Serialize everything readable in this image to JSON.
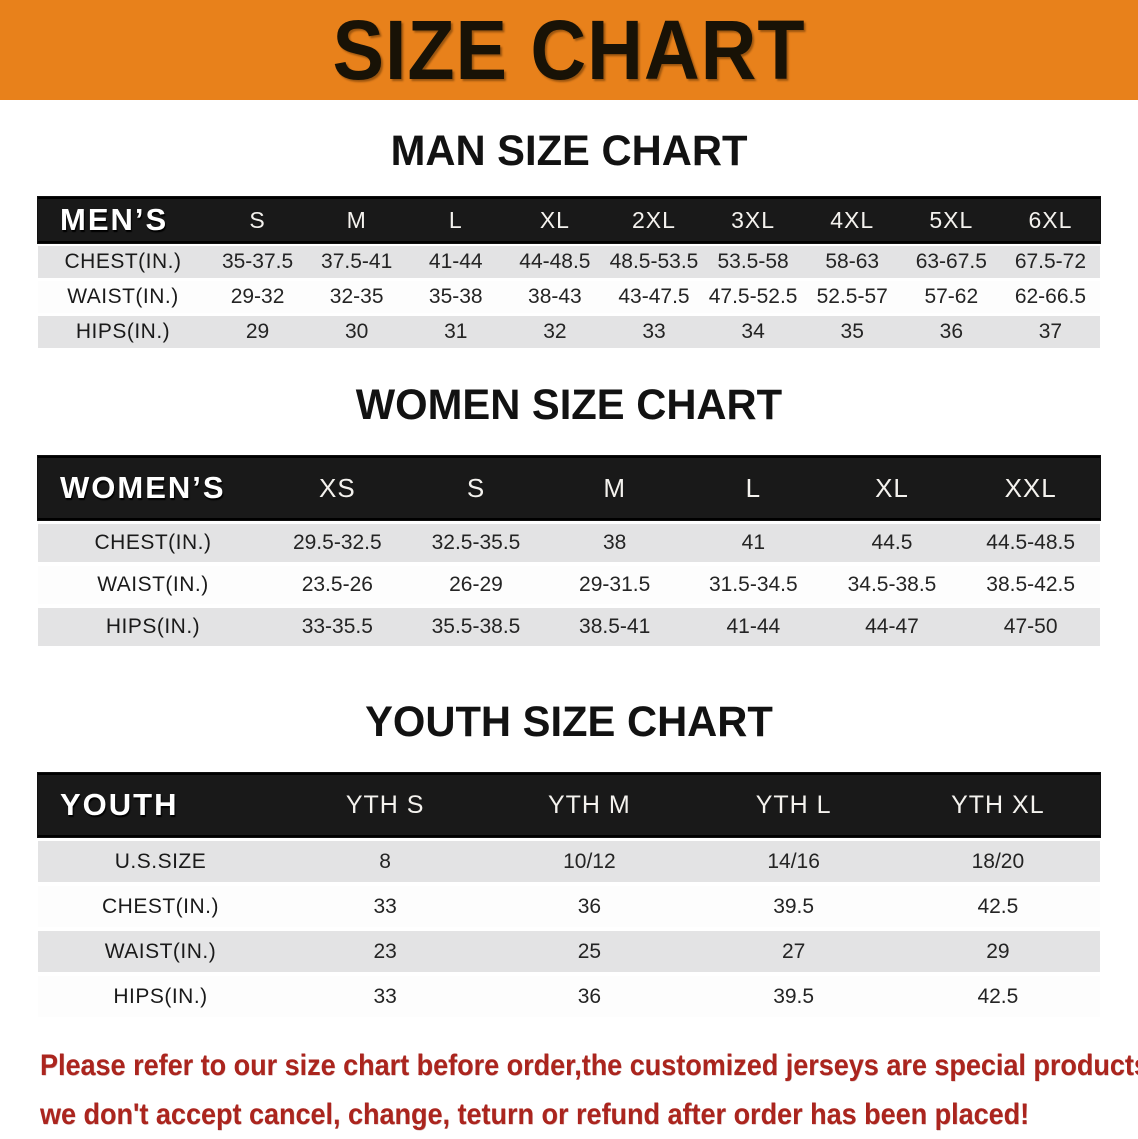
{
  "banner": {
    "title": "SIZE CHART"
  },
  "sections": [
    {
      "id": "men",
      "title": "MAN SIZE CHART",
      "header_label": "MEN’S",
      "sizes": [
        "S",
        "M",
        "L",
        "XL",
        "2XL",
        "3XL",
        "4XL",
        "5XL",
        "6XL"
      ],
      "rows": [
        {
          "label": "CHEST(IN.)",
          "values": [
            "35-37.5",
            "37.5-41",
            "41-44",
            "44-48.5",
            "48.5-53.5",
            "53.5-58",
            "58-63",
            "63-67.5",
            "67.5-72"
          ]
        },
        {
          "label": "WAIST(IN.)",
          "values": [
            "29-32",
            "32-35",
            "35-38",
            "38-43",
            "43-47.5",
            "47.5-52.5",
            "52.5-57",
            "57-62",
            "62-66.5"
          ]
        },
        {
          "label": "HIPS(IN.)",
          "values": [
            "29",
            "30",
            "31",
            "32",
            "33",
            "34",
            "35",
            "36",
            "37"
          ]
        }
      ]
    },
    {
      "id": "women",
      "title": "WOMEN SIZE CHART",
      "header_label": "WOMEN’S",
      "sizes": [
        "XS",
        "S",
        "M",
        "L",
        "XL",
        "XXL"
      ],
      "rows": [
        {
          "label": "CHEST(IN.)",
          "values": [
            "29.5-32.5",
            "32.5-35.5",
            "38",
            "41",
            "44.5",
            "44.5-48.5"
          ]
        },
        {
          "label": "WAIST(IN.)",
          "values": [
            "23.5-26",
            "26-29",
            "29-31.5",
            "31.5-34.5",
            "34.5-38.5",
            "38.5-42.5"
          ]
        },
        {
          "label": "HIPS(IN.)",
          "values": [
            "33-35.5",
            "35.5-38.5",
            "38.5-41",
            "41-44",
            "44-47",
            "47-50"
          ]
        }
      ]
    },
    {
      "id": "youth",
      "title": "YOUTH SIZE CHART",
      "header_label": "YOUTH",
      "sizes": [
        "YTH S",
        "YTH M",
        "YTH L",
        "YTH XL"
      ],
      "rows": [
        {
          "label": "U.S.SIZE",
          "values": [
            "8",
            "10/12",
            "14/16",
            "18/20"
          ]
        },
        {
          "label": "CHEST(IN.)",
          "values": [
            "33",
            "36",
            "39.5",
            "42.5"
          ]
        },
        {
          "label": "WAIST(IN.)",
          "values": [
            "23",
            "25",
            "27",
            "29"
          ]
        },
        {
          "label": "HIPS(IN.)",
          "values": [
            "33",
            "36",
            "39.5",
            "42.5"
          ]
        }
      ]
    }
  ],
  "footer": {
    "line1": "Please refer to our size chart before order,the customized jerseys are special products,",
    "line2": "we don't accept cancel, change, teturn or refund after order has been placed!"
  },
  "colors": {
    "banner_bg": "#E8811B",
    "header_band_bg": "#191919",
    "row_gray": "#e3e3e4",
    "footer_red": "#AB251E"
  }
}
